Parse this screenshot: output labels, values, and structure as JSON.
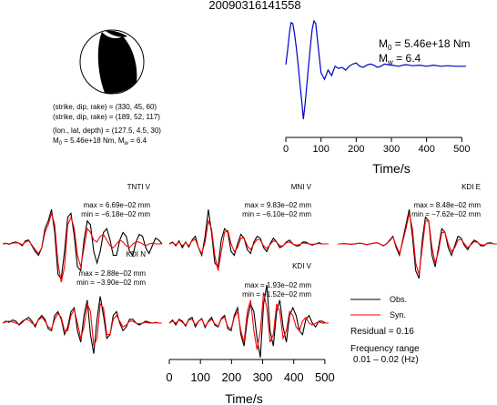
{
  "title": "20090316141558",
  "source_params": {
    "plane1": "(strike, dip, rake) = (330, 45, 60)",
    "plane2": "(strike, dip, rake) = (189, 52, 117)",
    "location": "(lon., lat, depth) = (127.5, 4.5, 30)",
    "moment_line": {
      "m0_prefix": "M",
      "m0_sub": "0",
      "m0_text": " = 5.46e+18 Nm, M",
      "mw_sub": "w",
      "mw_text": " = 6.4"
    }
  },
  "stf_labels": {
    "m0": {
      "base": "M",
      "sub": "0",
      "text": " = 5.46e+18 Nm"
    },
    "mw": {
      "base": "M",
      "sub": "w",
      "text": " = 6.4"
    }
  },
  "legend": {
    "obs": "Obs.",
    "syn": "Syn."
  },
  "residual": "Residual = 0.16",
  "freq_range_line1": "Frequency range",
  "freq_range_line2": "0.01 – 0.02 (Hz)",
  "colors": {
    "obs": "#000000",
    "syn": "#ff0000",
    "stf": "#0000cc",
    "axis": "#000000",
    "mech_fill": "#000000"
  },
  "chart_data": [
    {
      "type": "line",
      "id": "source_time_function",
      "xlabel": "Time/s",
      "xlim": [
        0,
        512
      ],
      "xticks": [
        0,
        100,
        200,
        300,
        400,
        500
      ],
      "series": [
        {
          "color": "#0000cc",
          "x": [
            0,
            5,
            10,
            15,
            20,
            25,
            30,
            35,
            40,
            45,
            50,
            55,
            60,
            65,
            70,
            75,
            80,
            85,
            90,
            95,
            100,
            110,
            120,
            130,
            140,
            150,
            160,
            170,
            180,
            190,
            200,
            210,
            220,
            230,
            240,
            250,
            260,
            270,
            280,
            290,
            300,
            320,
            340,
            360,
            380,
            400,
            420,
            440,
            460,
            480,
            500,
            512
          ],
          "y": [
            0.15,
            0.4,
            0.72,
            0.92,
            0.9,
            0.7,
            0.45,
            0.15,
            -0.2,
            -0.5,
            -0.85,
            -0.55,
            -0.2,
            0.15,
            0.5,
            0.8,
            0.95,
            0.9,
            0.6,
            0.3,
            0.0,
            -0.12,
            0.05,
            -0.05,
            0.12,
            0.08,
            0.1,
            0.05,
            0.12,
            0.16,
            0.18,
            0.12,
            0.1,
            0.14,
            0.16,
            0.14,
            0.1,
            0.12,
            0.16,
            0.15,
            0.14,
            0.12,
            0.15,
            0.13,
            0.14,
            0.12,
            0.14,
            0.12,
            0.13,
            0.12,
            0.12,
            0.12
          ]
        }
      ]
    },
    {
      "type": "line",
      "id": "TNTI_V",
      "station": "TNTI V",
      "max": "max = 6.69e−02 mm",
      "min": "min = −6.18e−02 mm",
      "series": [
        {
          "name": "Obs.",
          "color": "#000000",
          "y": [
            0,
            0.02,
            -0.01,
            0.03,
            0.05,
            0.02,
            -0.05,
            0.08,
            0.1,
            -0.05,
            -0.2,
            -0.3,
            -0.1,
            0.4,
            0.6,
            0.9,
            0.3,
            -0.8,
            -0.9,
            -0.2,
            0.7,
            0.8,
            0.2,
            -0.6,
            -0.7,
            0.1,
            0.6,
            0.5,
            -0.2,
            -0.5,
            -0.2,
            0.3,
            0.4,
            0.1,
            -0.3,
            -0.3,
            0.1,
            0.3,
            0.2,
            -0.2,
            -0.3,
            0.05,
            0.25,
            0.2,
            -0.1,
            -0.25,
            -0.05,
            0.15,
            0.1,
            0
          ]
        },
        {
          "name": "Syn.",
          "color": "#ff0000",
          "y": [
            0,
            0.01,
            0.0,
            0.02,
            0.03,
            0.02,
            -0.02,
            0.05,
            0.08,
            -0.03,
            -0.15,
            -0.25,
            -0.1,
            0.3,
            0.5,
            0.8,
            0.5,
            -0.5,
            -1.0,
            -0.6,
            0.5,
            0.7,
            0.4,
            -0.3,
            -0.6,
            -0.1,
            0.4,
            0.3,
            0.1,
            0.05,
            0.2,
            0.25,
            0.1,
            -0.05,
            -0.1,
            0.0,
            0.1,
            0.05,
            -0.05,
            -0.1,
            0.0,
            0.05,
            0.05,
            0.0,
            -0.05,
            0.0,
            0.02,
            0.0,
            0.0,
            0
          ]
        }
      ]
    },
    {
      "type": "line",
      "id": "MNI_V",
      "station": "MNI V",
      "max": "max = 9.83e−02 mm",
      "min": "min = −6.10e−02 mm",
      "series": [
        {
          "name": "Obs.",
          "color": "#000000",
          "y": [
            0,
            0.05,
            -0.05,
            0.08,
            -0.1,
            0.05,
            -0.08,
            0.1,
            0.2,
            -0.1,
            -0.3,
            0.2,
            0.9,
            0.3,
            -0.5,
            -0.6,
            0.1,
            0.4,
            0.3,
            -0.2,
            -0.3,
            0.0,
            0.25,
            0.15,
            -0.15,
            -0.25,
            0.05,
            0.2,
            0.15,
            -0.1,
            -0.2,
            0.0,
            0.15,
            0.05,
            -0.1,
            -0.05,
            0.05,
            0.1,
            0.0,
            -0.05,
            -0.05,
            0.05,
            0.05,
            0.0,
            -0.03,
            0.0,
            0.03,
            0.0,
            0.0,
            0
          ]
        },
        {
          "name": "Syn.",
          "color": "#ff0000",
          "y": [
            0,
            0.03,
            -0.02,
            0.05,
            -0.05,
            0.03,
            -0.05,
            0.08,
            0.12,
            -0.1,
            -0.25,
            0.05,
            0.6,
            0.4,
            -0.3,
            -0.7,
            -0.2,
            0.3,
            0.35,
            0.0,
            -0.2,
            -0.1,
            0.15,
            0.15,
            -0.05,
            -0.15,
            0.0,
            0.12,
            0.1,
            -0.05,
            -0.12,
            -0.02,
            0.08,
            0.05,
            -0.05,
            -0.05,
            0.03,
            0.05,
            0.0,
            -0.03,
            -0.02,
            0.02,
            0.02,
            0.0,
            -0.01,
            0.0,
            0.01,
            0.0,
            0.0,
            0
          ]
        }
      ]
    },
    {
      "type": "line",
      "id": "KDI_E",
      "station": "KDI E",
      "max": "max = 8.48e−02 mm",
      "min": "min = −7.62e−02 mm",
      "series": [
        {
          "name": "Obs.",
          "color": "#000000",
          "y": [
            0,
            0,
            0.01,
            0,
            -0.01,
            0,
            0.01,
            0.02,
            0,
            -0.02,
            0,
            0.02,
            0.03,
            0,
            -0.05,
            0,
            0.1,
            0.2,
            -0.1,
            -0.3,
            0.1,
            0.5,
            0.9,
            0.2,
            -0.7,
            -0.9,
            0.1,
            0.7,
            0.6,
            -0.3,
            -0.6,
            -0.1,
            0.4,
            0.3,
            -0.1,
            -0.3,
            -0.05,
            0.2,
            0.15,
            -0.05,
            -0.15,
            0.0,
            0.1,
            0.05,
            -0.05,
            -0.05,
            0.02,
            0.03,
            0.0,
            0
          ]
        },
        {
          "name": "Syn.",
          "color": "#ff0000",
          "y": [
            0,
            0,
            0.01,
            0,
            -0.01,
            0,
            0.01,
            0.02,
            0,
            -0.02,
            0,
            0.02,
            0.03,
            0,
            -0.04,
            0,
            0.08,
            0.18,
            -0.05,
            -0.25,
            0.05,
            0.4,
            0.8,
            0.4,
            -0.5,
            -0.8,
            -0.1,
            0.6,
            0.6,
            -0.1,
            -0.5,
            -0.2,
            0.3,
            0.3,
            0.0,
            -0.2,
            -0.1,
            0.1,
            0.12,
            0.0,
            -0.1,
            -0.02,
            0.06,
            0.04,
            -0.02,
            -0.03,
            0.01,
            0.02,
            0.0,
            0
          ]
        }
      ]
    },
    {
      "type": "line",
      "id": "KDI_N",
      "station": "KDI N",
      "max": "max = 2.88e−02 mm",
      "min": "min = −3.90e−02 mm",
      "series": [
        {
          "name": "Obs.",
          "color": "#000000",
          "y": [
            0,
            0.05,
            0.02,
            0.08,
            0.05,
            -0.05,
            0.02,
            0.1,
            0.15,
            0.05,
            -0.1,
            0.1,
            0.2,
            0.1,
            -0.15,
            -0.2,
            0.2,
            0.3,
            0.1,
            -0.3,
            -0.1,
            0.3,
            0.4,
            -0.2,
            -0.5,
            0.2,
            0.6,
            -0.3,
            -0.8,
            0.1,
            0.7,
            0.2,
            -0.4,
            -0.3,
            0.2,
            0.3,
            0.0,
            -0.2,
            -0.1,
            0.1,
            0.1,
            0.0,
            -0.05,
            0.0,
            0.05,
            0.02,
            0.0,
            0.02,
            0.0,
            0
          ]
        },
        {
          "name": "Syn.",
          "color": "#ff0000",
          "y": [
            0,
            0.03,
            0.05,
            0.03,
            0.0,
            -0.03,
            0.05,
            0.1,
            0.08,
            0.0,
            -0.05,
            0.08,
            0.15,
            0.05,
            -0.1,
            -0.15,
            0.1,
            0.25,
            0.15,
            -0.2,
            -0.2,
            0.2,
            0.35,
            0.0,
            -0.4,
            -0.1,
            0.5,
            0.3,
            -0.6,
            -0.4,
            0.5,
            0.4,
            -0.3,
            -0.3,
            0.1,
            0.2,
            0.05,
            -0.1,
            -0.05,
            0.05,
            0.05,
            0.0,
            -0.02,
            0.0,
            0.02,
            0.0,
            0.0,
            0.01,
            0.0,
            0
          ]
        }
      ]
    },
    {
      "type": "line",
      "id": "KDI_V",
      "station": "KDI V",
      "xlabel": "Time/s",
      "xlim": [
        0,
        512
      ],
      "xticks": [
        0,
        100,
        200,
        300,
        400,
        500
      ],
      "max": "max = 1.93e−02 mm",
      "min": "min = −1.52e−02 mm",
      "series": [
        {
          "name": "Obs.",
          "color": "#000000",
          "y": [
            0,
            0.08,
            -0.05,
            0.1,
            0.05,
            -0.08,
            0.1,
            0.15,
            -0.1,
            0.05,
            0.12,
            -0.12,
            0.05,
            0.15,
            -0.05,
            -0.1,
            0.12,
            0.2,
            -0.15,
            -0.2,
            0.2,
            0.4,
            -0.3,
            -0.6,
            0.1,
            0.5,
            0.3,
            -0.4,
            -0.9,
            0.5,
            1.0,
            -0.2,
            -0.6,
            0.3,
            0.6,
            -0.1,
            -0.5,
            0.2,
            0.4,
            0.2,
            -0.2,
            -0.3,
            0.1,
            0.2,
            0.0,
            -0.1,
            0.05,
            0.05,
            0.0,
            0
          ]
        },
        {
          "name": "Syn.",
          "color": "#ff0000",
          "y": [
            0,
            0.05,
            0.0,
            0.08,
            0.02,
            -0.05,
            0.08,
            0.1,
            -0.05,
            0.05,
            0.1,
            -0.08,
            0.03,
            0.1,
            -0.02,
            -0.08,
            0.1,
            0.15,
            -0.1,
            -0.15,
            0.15,
            0.3,
            -0.2,
            -0.5,
            0.3,
            0.6,
            -0.2,
            -0.7,
            -0.2,
            0.8,
            0.4,
            -0.5,
            -0.3,
            0.5,
            0.3,
            -0.4,
            -0.2,
            0.3,
            0.2,
            -0.1,
            -0.2,
            0.05,
            0.15,
            0.0,
            -0.05,
            0.0,
            0.03,
            0.0,
            0.0,
            0
          ]
        }
      ]
    }
  ]
}
